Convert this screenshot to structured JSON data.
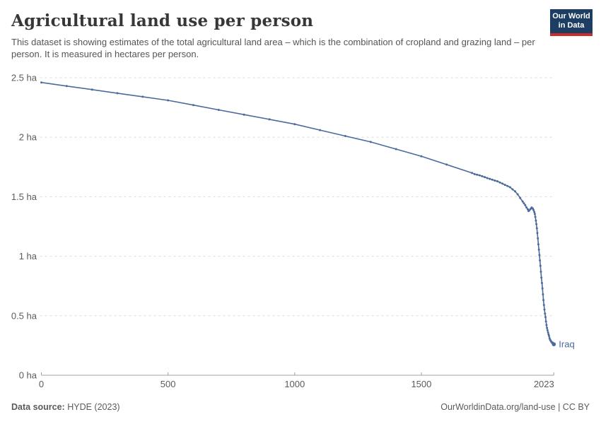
{
  "header": {
    "title": "Agricultural land use per person",
    "subtitle": "This dataset is showing estimates of the total agricultural land area – which is the combination of cropland and grazing land – per person. It is measured in hectares per person."
  },
  "logo": {
    "line1": "Our World",
    "line2": "in Data",
    "bg_color": "#1d3d63",
    "bar_color": "#c82d28"
  },
  "chart_data": {
    "type": "line",
    "entity": "Iraq",
    "unit": "hectares per person",
    "line_color": "#4C6A9C",
    "grid": "horizontal-dashed",
    "legend_position": "end-of-line-label",
    "xlim": [
      0,
      2023
    ],
    "ylim": [
      0,
      2.5
    ],
    "x_ticks": [
      {
        "value": 0,
        "label": "0"
      },
      {
        "value": 500,
        "label": "500"
      },
      {
        "value": 1000,
        "label": "1000"
      },
      {
        "value": 1500,
        "label": "1500"
      },
      {
        "value": 2023,
        "label": "2023"
      }
    ],
    "y_ticks": [
      {
        "value": 0,
        "label": "0 ha"
      },
      {
        "value": 0.5,
        "label": "0.5 ha"
      },
      {
        "value": 1,
        "label": "1 ha"
      },
      {
        "value": 1.5,
        "label": "1.5 ha"
      },
      {
        "value": 2,
        "label": "2 ha"
      },
      {
        "value": 2.5,
        "label": "2.5 ha"
      }
    ],
    "points": [
      [
        0,
        2.46
      ],
      [
        100,
        2.43
      ],
      [
        200,
        2.4
      ],
      [
        300,
        2.37
      ],
      [
        400,
        2.34
      ],
      [
        500,
        2.31
      ],
      [
        600,
        2.27
      ],
      [
        700,
        2.23
      ],
      [
        800,
        2.19
      ],
      [
        900,
        2.15
      ],
      [
        1000,
        2.11
      ],
      [
        1100,
        2.06
      ],
      [
        1200,
        2.01
      ],
      [
        1300,
        1.96
      ],
      [
        1400,
        1.9
      ],
      [
        1500,
        1.84
      ],
      [
        1600,
        1.77
      ],
      [
        1700,
        1.7
      ],
      [
        1710,
        1.69
      ],
      [
        1720,
        1.685
      ],
      [
        1730,
        1.68
      ],
      [
        1740,
        1.672
      ],
      [
        1750,
        1.665
      ],
      [
        1760,
        1.657
      ],
      [
        1770,
        1.65
      ],
      [
        1780,
        1.643
      ],
      [
        1790,
        1.636
      ],
      [
        1800,
        1.63
      ],
      [
        1810,
        1.62
      ],
      [
        1820,
        1.61
      ],
      [
        1830,
        1.6
      ],
      [
        1840,
        1.59
      ],
      [
        1850,
        1.58
      ],
      [
        1860,
        1.562
      ],
      [
        1870,
        1.545
      ],
      [
        1880,
        1.52
      ],
      [
        1890,
        1.49
      ],
      [
        1900,
        1.46
      ],
      [
        1905,
        1.445
      ],
      [
        1910,
        1.43
      ],
      [
        1915,
        1.41
      ],
      [
        1920,
        1.395
      ],
      [
        1923,
        1.38
      ],
      [
        1926,
        1.385
      ],
      [
        1930,
        1.395
      ],
      [
        1933,
        1.402
      ],
      [
        1936,
        1.41
      ],
      [
        1940,
        1.4
      ],
      [
        1943,
        1.388
      ],
      [
        1946,
        1.372
      ],
      [
        1948,
        1.355
      ],
      [
        1950,
        1.33
      ],
      [
        1952,
        1.3
      ],
      [
        1954,
        1.27
      ],
      [
        1956,
        1.235
      ],
      [
        1958,
        1.195
      ],
      [
        1960,
        1.15
      ],
      [
        1962,
        1.1
      ],
      [
        1964,
        1.055
      ],
      [
        1966,
        1.01
      ],
      [
        1968,
        0.965
      ],
      [
        1970,
        0.92
      ],
      [
        1972,
        0.87
      ],
      [
        1974,
        0.82
      ],
      [
        1976,
        0.775
      ],
      [
        1978,
        0.73
      ],
      [
        1980,
        0.68
      ],
      [
        1982,
        0.632
      ],
      [
        1984,
        0.59
      ],
      [
        1986,
        0.552
      ],
      [
        1988,
        0.518
      ],
      [
        1990,
        0.488
      ],
      [
        1992,
        0.452
      ],
      [
        1994,
        0.422
      ],
      [
        1996,
        0.398
      ],
      [
        1998,
        0.378
      ],
      [
        2000,
        0.36
      ],
      [
        2002,
        0.344
      ],
      [
        2004,
        0.33
      ],
      [
        2006,
        0.312
      ],
      [
        2008,
        0.3
      ],
      [
        2010,
        0.292
      ],
      [
        2012,
        0.285
      ],
      [
        2014,
        0.278
      ],
      [
        2016,
        0.272
      ],
      [
        2018,
        0.275
      ],
      [
        2020,
        0.27
      ],
      [
        2022,
        0.264
      ],
      [
        2023,
        0.26
      ]
    ],
    "colors": {
      "grid": "#dcdcdc",
      "axis": "#a1a1a1",
      "tick_text": "#5b5b5b"
    }
  },
  "footer": {
    "source_label": "Data source:",
    "source_value": "HYDE (2023)",
    "link": "OurWorldinData.org/land-use",
    "license": " | CC BY"
  }
}
